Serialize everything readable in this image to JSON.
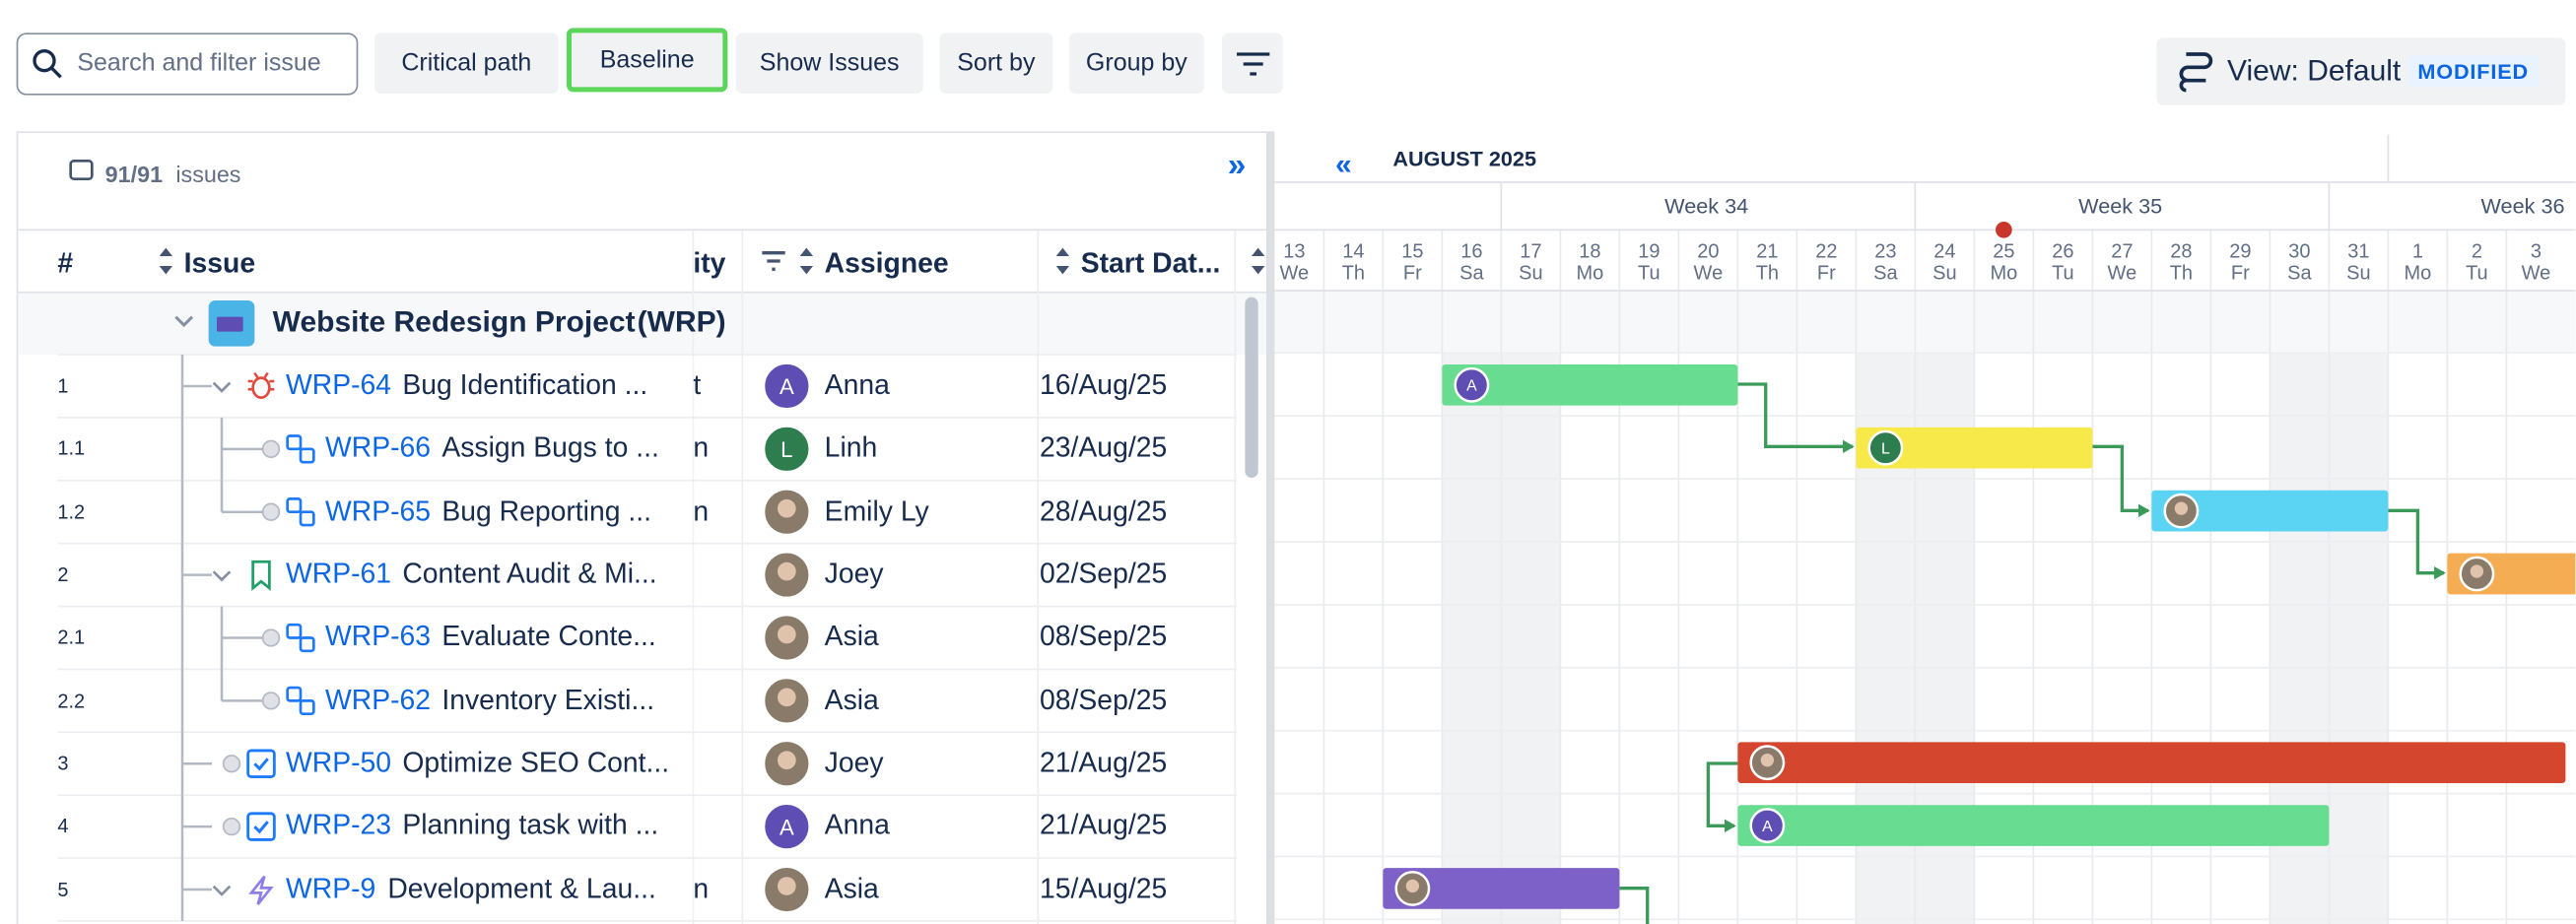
{
  "toolbar": {
    "search_placeholder": "Search and filter issue",
    "buttons": [
      "Critical path",
      "Baseline",
      "Show Issues",
      "Sort by",
      "Group by"
    ],
    "view_label": "View: Default",
    "view_badge": "MODIFIED"
  },
  "panel": {
    "issues_count": "91/91",
    "issues_label": "issues",
    "columns": {
      "number": "#",
      "issue": "Issue",
      "clipped": "ity",
      "assignee": "Assignee",
      "start": "Start Dat..."
    }
  },
  "group": {
    "name": "Website Redesign Project",
    "key": "(WRP)"
  },
  "rows": [
    {
      "number": "1",
      "key": "WRP-64",
      "title": "Bug Identification ...",
      "clipped": "t",
      "assignee": "Anna",
      "avatar_letter": "A",
      "start": "16/Aug/25",
      "icon": "bug",
      "level": 1
    },
    {
      "number": "1.1",
      "key": "WRP-66",
      "title": "Assign Bugs to ...",
      "clipped": "n",
      "assignee": "Linh",
      "avatar_letter": "L",
      "start": "23/Aug/25",
      "icon": "subtask",
      "level": 2
    },
    {
      "number": "1.2",
      "key": "WRP-65",
      "title": "Bug Reporting ...",
      "clipped": "n",
      "assignee": "Emily Ly",
      "start": "28/Aug/25",
      "icon": "subtask",
      "level": 2
    },
    {
      "number": "2",
      "key": "WRP-61",
      "title": "Content Audit & Mi...",
      "assignee": "Joey",
      "start": "02/Sep/25",
      "icon": "story",
      "level": 1
    },
    {
      "number": "2.1",
      "key": "WRP-63",
      "title": "Evaluate Conte...",
      "assignee": "Asia",
      "start": "08/Sep/25",
      "icon": "subtask",
      "level": 2
    },
    {
      "number": "2.2",
      "key": "WRP-62",
      "title": "Inventory Existi...",
      "assignee": "Asia",
      "start": "08/Sep/25",
      "icon": "subtask",
      "level": 2
    },
    {
      "number": "3",
      "key": "WRP-50",
      "title": "Optimize SEO Cont...",
      "assignee": "Joey",
      "start": "21/Aug/25",
      "icon": "task",
      "level": 1
    },
    {
      "number": "4",
      "key": "WRP-23",
      "title": "Planning task with ...",
      "assignee": "Anna",
      "avatar_letter": "A",
      "start": "21/Aug/25",
      "icon": "task",
      "level": 1
    },
    {
      "number": "5",
      "key": "WRP-9",
      "title": "Development & Lau...",
      "clipped": "n",
      "assignee": "Asia",
      "start": "15/Aug/25",
      "icon": "epic",
      "level": 1
    }
  ],
  "gantt": {
    "month": "AUGUST 2025",
    "weeks": [
      "Week 34",
      "Week 35",
      "Week 36"
    ],
    "days": [
      {
        "day": "13",
        "weekday": "We"
      },
      {
        "day": "14",
        "weekday": "Th"
      },
      {
        "day": "15",
        "weekday": "Fr"
      },
      {
        "day": "16",
        "weekday": "Sa"
      },
      {
        "day": "17",
        "weekday": "Su"
      },
      {
        "day": "18",
        "weekday": "Mo"
      },
      {
        "day": "19",
        "weekday": "Tu"
      },
      {
        "day": "20",
        "weekday": "We"
      },
      {
        "day": "21",
        "weekday": "Th"
      },
      {
        "day": "22",
        "weekday": "Fr"
      },
      {
        "day": "23",
        "weekday": "Sa"
      },
      {
        "day": "24",
        "weekday": "Su"
      },
      {
        "day": "25",
        "weekday": "Mo"
      },
      {
        "day": "26",
        "weekday": "Tu"
      },
      {
        "day": "27",
        "weekday": "We"
      },
      {
        "day": "28",
        "weekday": "Th"
      },
      {
        "day": "29",
        "weekday": "Fr"
      },
      {
        "day": "30",
        "weekday": "Sa"
      },
      {
        "day": "31",
        "weekday": "Su"
      },
      {
        "day": "1",
        "weekday": "Mo"
      },
      {
        "day": "2",
        "weekday": "Tu"
      },
      {
        "day": "3",
        "weekday": "We"
      }
    ]
  }
}
